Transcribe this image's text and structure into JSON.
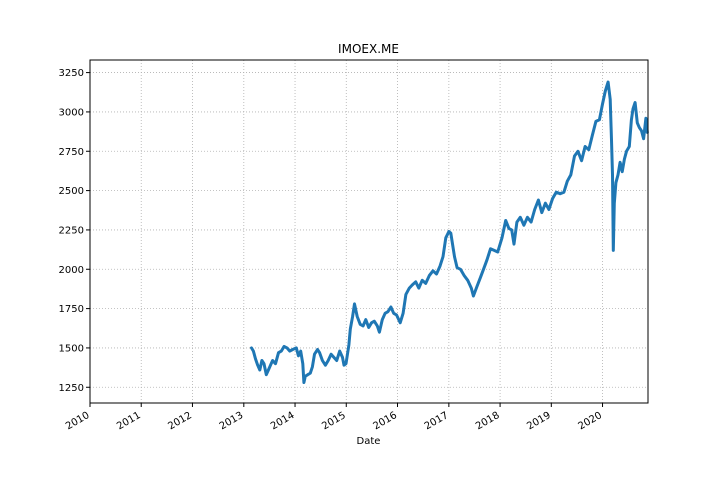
{
  "chart_data": {
    "type": "line",
    "title": "IMOEX.ME",
    "xlabel": "Date",
    "ylabel": "",
    "x_ticks": [
      "2010",
      "2011",
      "2012",
      "2013",
      "2014",
      "2015",
      "2016",
      "2017",
      "2018",
      "2019",
      "2020"
    ],
    "y_ticks": [
      1250,
      1500,
      1750,
      2000,
      2250,
      2500,
      2750,
      3000,
      3250
    ],
    "xlim": [
      "2010-01-01",
      "2020-11-20"
    ],
    "ylim": [
      1150,
      3330
    ],
    "grid": true,
    "line_color": "#1f77b4",
    "series": [
      {
        "x": [
          "2013-02-25",
          "2013-03-10",
          "2013-03-25",
          "2013-04-10",
          "2013-04-25",
          "2013-05-10",
          "2013-05-25",
          "2013-06-10",
          "2013-06-25",
          "2013-07-10",
          "2013-07-25",
          "2013-08-15",
          "2013-09-05",
          "2013-09-25",
          "2013-10-15",
          "2013-11-05",
          "2013-11-25",
          "2013-12-15",
          "2014-01-10",
          "2014-01-25",
          "2014-02-10",
          "2014-02-25",
          "2014-03-05",
          "2014-03-15",
          "2014-04-01",
          "2014-04-20",
          "2014-05-05",
          "2014-05-20",
          "2014-06-10",
          "2014-06-25",
          "2014-07-15",
          "2014-08-05",
          "2014-08-25",
          "2014-09-15",
          "2014-10-05",
          "2014-10-25",
          "2014-11-15",
          "2014-12-05",
          "2014-12-16",
          "2014-12-30",
          "2015-01-20",
          "2015-01-30",
          "2015-02-15",
          "2015-03-01",
          "2015-03-20",
          "2015-04-10",
          "2015-05-01",
          "2015-05-20",
          "2015-06-10",
          "2015-06-30",
          "2015-07-20",
          "2015-08-10",
          "2015-08-25",
          "2015-09-15",
          "2015-10-05",
          "2015-10-25",
          "2015-11-15",
          "2015-12-05",
          "2015-12-25",
          "2016-01-20",
          "2016-02-10",
          "2016-03-01",
          "2016-03-25",
          "2016-04-15",
          "2016-05-10",
          "2016-06-01",
          "2016-06-25",
          "2016-07-20",
          "2016-08-15",
          "2016-09-10",
          "2016-10-05",
          "2016-10-30",
          "2016-11-20",
          "2016-12-10",
          "2017-01-01",
          "2017-01-15",
          "2017-02-10",
          "2017-03-01",
          "2017-03-25",
          "2017-04-20",
          "2017-05-15",
          "2017-06-10",
          "2017-06-25",
          "2017-07-20",
          "2017-08-15",
          "2017-09-05",
          "2017-09-30",
          "2017-10-25",
          "2017-11-20",
          "2017-12-15",
          "2018-01-15",
          "2018-02-10",
          "2018-03-05",
          "2018-03-25",
          "2018-04-10",
          "2018-05-01",
          "2018-05-25",
          "2018-06-20",
          "2018-07-15",
          "2018-08-10",
          "2018-09-05",
          "2018-10-01",
          "2018-10-25",
          "2018-11-20",
          "2018-12-15",
          "2019-01-10",
          "2019-02-05",
          "2019-03-05",
          "2019-04-01",
          "2019-04-25",
          "2019-05-20",
          "2019-06-15",
          "2019-07-10",
          "2019-08-05",
          "2019-08-30",
          "2019-09-25",
          "2019-10-20",
          "2019-11-15",
          "2019-12-10",
          "2020-01-01",
          "2020-01-20",
          "2020-02-10",
          "2020-02-25",
          "2020-03-05",
          "2020-03-12",
          "2020-03-18",
          "2020-03-25",
          "2020-04-05",
          "2020-04-20",
          "2020-05-05",
          "2020-05-20",
          "2020-06-05",
          "2020-06-20",
          "2020-07-10",
          "2020-07-25",
          "2020-08-05",
          "2020-08-20",
          "2020-09-05",
          "2020-09-20",
          "2020-10-05",
          "2020-10-20",
          "2020-11-05",
          "2020-11-15"
        ],
        "values": [
          1500,
          1480,
          1430,
          1390,
          1360,
          1420,
          1400,
          1330,
          1360,
          1390,
          1420,
          1400,
          1470,
          1480,
          1510,
          1500,
          1480,
          1490,
          1500,
          1450,
          1480,
          1400,
          1280,
          1320,
          1330,
          1340,
          1380,
          1460,
          1490,
          1470,
          1420,
          1390,
          1420,
          1460,
          1440,
          1420,
          1480,
          1440,
          1390,
          1400,
          1520,
          1620,
          1700,
          1780,
          1700,
          1650,
          1640,
          1680,
          1630,
          1660,
          1670,
          1640,
          1600,
          1680,
          1720,
          1730,
          1760,
          1720,
          1710,
          1660,
          1720,
          1840,
          1880,
          1900,
          1920,
          1880,
          1930,
          1910,
          1960,
          1990,
          1970,
          2020,
          2080,
          2200,
          2240,
          2230,
          2080,
          2010,
          2000,
          1960,
          1930,
          1880,
          1830,
          1890,
          1950,
          2000,
          2060,
          2130,
          2120,
          2110,
          2200,
          2310,
          2260,
          2250,
          2160,
          2300,
          2330,
          2280,
          2330,
          2300,
          2380,
          2440,
          2360,
          2420,
          2380,
          2450,
          2490,
          2480,
          2490,
          2560,
          2600,
          2720,
          2750,
          2690,
          2780,
          2760,
          2850,
          2940,
          2950,
          3050,
          3130,
          3190,
          3080,
          2820,
          2600,
          2120,
          2420,
          2550,
          2600,
          2680,
          2620,
          2700,
          2750,
          2780,
          2950,
          3020,
          3060,
          2930,
          2900,
          2880,
          2830,
          2960,
          2870
        ]
      }
    ]
  }
}
